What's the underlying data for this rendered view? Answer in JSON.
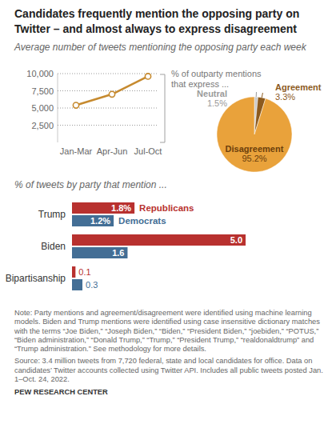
{
  "chart_data": [
    {
      "type": "line",
      "title": "Candidates frequently mention the opposing party on Twitter – and almost always to express disagreement",
      "subtitle": "Average number of tweets mentioning the opposing party each week",
      "categories": [
        "Jan-Mar",
        "Apr-Jun",
        "Jul-Oct"
      ],
      "values": [
        5400,
        7000,
        9600
      ],
      "color": "#c68a2f",
      "marker": "circle",
      "ylim": [
        0,
        10000
      ],
      "yticks": [
        {
          "value": 2500,
          "label": "2,500"
        },
        {
          "value": 5000,
          "label": "5,000"
        },
        {
          "value": 7500,
          "label": "7,500"
        },
        {
          "value": 10000,
          "label": "10,000"
        }
      ],
      "grid": true
    },
    {
      "type": "pie",
      "subtitle": "% of outparty mentions that express ...",
      "categories": [
        "Neutral",
        "Agreement",
        "Disagreement"
      ],
      "values": [
        1.5,
        3.3,
        95.2
      ],
      "value_labels": [
        "1.5%",
        "3.3%",
        "95.2%"
      ],
      "colors": [
        "#c9c9c9",
        "#8c5a1e",
        "#e9a23b"
      ],
      "data_labels": true
    },
    {
      "type": "bar",
      "orientation": "horizontal",
      "subtitle": "% of tweets by party that mention ...",
      "categories": [
        "Trump",
        "Biden",
        "Bipartisanship"
      ],
      "series": [
        {
          "name": "Republicans",
          "color": "#b8312f",
          "values": [
            1.8,
            5.0,
            0.1
          ],
          "value_labels": [
            "1.8%",
            "5.0",
            "0.1"
          ]
        },
        {
          "name": "Democrats",
          "color": "#436e95",
          "values": [
            1.2,
            1.6,
            0.3
          ],
          "value_labels": [
            "1.2%",
            "1.6",
            "0.3"
          ]
        }
      ],
      "xlim": [
        0,
        5
      ],
      "tick_labels": false,
      "data_labels": true
    }
  ],
  "notes": {
    "note": "Note: Party mentions and agreement/disagreement were identified using machine learning models. Biden and Trump mentions were identified using case insensitive dictionary matches with the terms “Joe Biden,” “Joseph Biden,” “Biden,” “President Biden,” “joebiden,” “POTUS,” “Biden administration,” “Donald Trump,” “Trump,” “President Trump,” “realdonaldtrump” and “Trump administration.” See methodology for more details.",
    "source": "Source: 3.4 million tweets from 7,720 federal, state and local candidates for office. Data on candidates’ Twitter accounts collected using Twitter API. Includes all public tweets posted Jan. 1–Oct. 24, 2022.",
    "credit": "PEW RESEARCH CENTER"
  }
}
